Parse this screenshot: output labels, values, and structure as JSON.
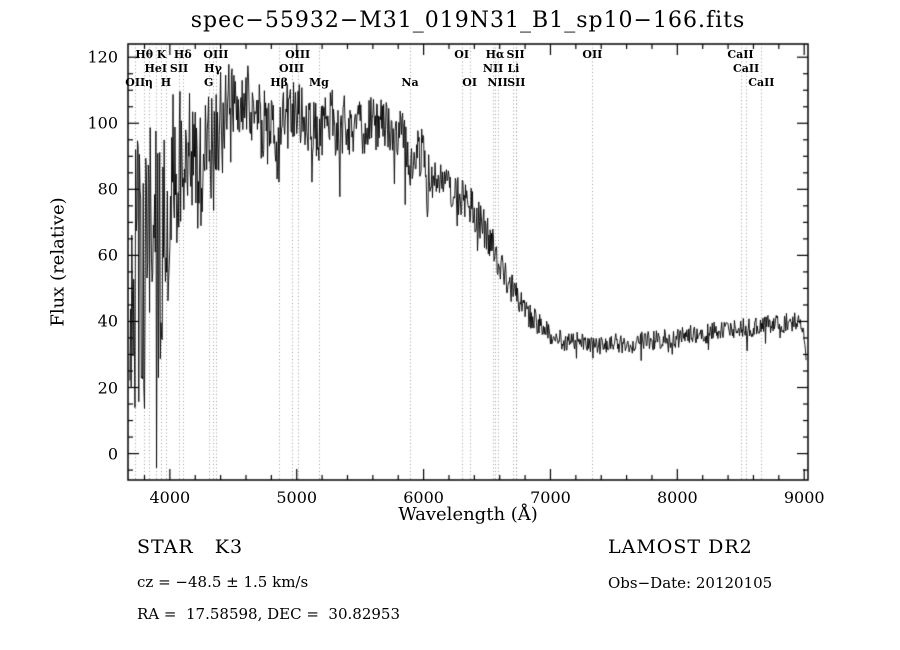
{
  "figure": {
    "title": "spec−55932−M31_019N31_B1_sp10−166.fits",
    "xlabel": "Wavelength (Å)",
    "ylabel": "Flux (relative)"
  },
  "annotations": {
    "class_label": "STAR   K3",
    "survey": "LAMOST DR2",
    "cz": "cz = −48.5 ± 1.5 km/s",
    "obs_date": "Obs−Date: 20120105",
    "ra_dec": "RA =  17.58598, DEC =  30.82953"
  },
  "chart_data": {
    "type": "line",
    "title": "spec−55932−M31_019N31_B1_sp10−166.fits",
    "xlabel": "Wavelength (Å)",
    "ylabel": "Flux (relative)",
    "xlim": [
      3670,
      9030
    ],
    "ylim": [
      -8,
      124
    ],
    "x_ticks": [
      4000,
      5000,
      6000,
      7000,
      8000,
      9000
    ],
    "x_minor_step": 200,
    "y_ticks": [
      0,
      20,
      40,
      60,
      80,
      100,
      120
    ],
    "y_minor_step": 5,
    "grid": true,
    "legend": "none",
    "line_color": "#000000",
    "grid_color": "#9e9e9e",
    "noise_seed": 55932,
    "spectrum_step": 5,
    "spectrum_range": [
      3685,
      9018
    ],
    "spectrum_envelope": [
      [
        3670,
        40,
        38
      ],
      [
        3700,
        48,
        40
      ],
      [
        3730,
        55,
        42
      ],
      [
        3760,
        60,
        40
      ],
      [
        3790,
        52,
        42
      ],
      [
        3820,
        55,
        40
      ],
      [
        3850,
        60,
        40
      ],
      [
        3880,
        62,
        38
      ],
      [
        3910,
        60,
        40
      ],
      [
        3940,
        65,
        38
      ],
      [
        3970,
        72,
        35
      ],
      [
        4000,
        82,
        28
      ],
      [
        4050,
        90,
        24
      ],
      [
        4100,
        92,
        22
      ],
      [
        4150,
        95,
        20
      ],
      [
        4200,
        88,
        20
      ],
      [
        4250,
        85,
        18
      ],
      [
        4300,
        92,
        18
      ],
      [
        4340,
        90,
        18
      ],
      [
        4400,
        102,
        14
      ],
      [
        4450,
        106,
        12
      ],
      [
        4500,
        108,
        12
      ],
      [
        4550,
        110,
        11
      ],
      [
        4600,
        108,
        11
      ],
      [
        4650,
        104,
        12
      ],
      [
        4700,
        102,
        12
      ],
      [
        4750,
        100,
        12
      ],
      [
        4800,
        98,
        12
      ],
      [
        4861,
        92,
        12
      ],
      [
        4900,
        100,
        11
      ],
      [
        4950,
        103,
        10
      ],
      [
        5000,
        104,
        10
      ],
      [
        5050,
        100,
        11
      ],
      [
        5100,
        99,
        11
      ],
      [
        5175,
        95,
        10
      ],
      [
        5250,
        101,
        10
      ],
      [
        5350,
        99,
        10
      ],
      [
        5450,
        100,
        9
      ],
      [
        5550,
        99,
        9
      ],
      [
        5650,
        100,
        9
      ],
      [
        5750,
        99,
        9
      ],
      [
        5800,
        98,
        9
      ],
      [
        5850,
        93,
        9
      ],
      [
        5893,
        86,
        8
      ],
      [
        5950,
        92,
        8
      ],
      [
        6000,
        90,
        8
      ],
      [
        6030,
        80,
        10
      ],
      [
        6060,
        86,
        7
      ],
      [
        6100,
        85,
        6
      ],
      [
        6150,
        83,
        6
      ],
      [
        6200,
        81,
        6
      ],
      [
        6250,
        79,
        6
      ],
      [
        6300,
        77,
        6
      ],
      [
        6350,
        76,
        6
      ],
      [
        6400,
        73,
        6
      ],
      [
        6450,
        70,
        6
      ],
      [
        6500,
        67,
        6
      ],
      [
        6563,
        60,
        6
      ],
      [
        6600,
        58,
        5
      ],
      [
        6650,
        54,
        5
      ],
      [
        6700,
        50,
        5
      ],
      [
        6750,
        47,
        4
      ],
      [
        6800,
        44,
        4
      ],
      [
        6870,
        40,
        4
      ],
      [
        6900,
        40,
        4
      ],
      [
        6950,
        38,
        3
      ],
      [
        7000,
        36,
        3
      ],
      [
        7100,
        34,
        3
      ],
      [
        7200,
        34,
        3
      ],
      [
        7300,
        33,
        3
      ],
      [
        7400,
        33,
        3
      ],
      [
        7500,
        34,
        3
      ],
      [
        7600,
        32,
        3
      ],
      [
        7700,
        34,
        3
      ],
      [
        7800,
        34,
        3
      ],
      [
        7900,
        35,
        3
      ],
      [
        8000,
        35,
        3
      ],
      [
        8100,
        36,
        3
      ],
      [
        8200,
        36,
        3
      ],
      [
        8300,
        37,
        3
      ],
      [
        8400,
        37,
        3
      ],
      [
        8500,
        38,
        3
      ],
      [
        8600,
        38,
        3
      ],
      [
        8700,
        39,
        3
      ],
      [
        8800,
        39,
        3
      ],
      [
        8900,
        40,
        3
      ],
      [
        8970,
        40,
        2
      ],
      [
        9000,
        36,
        2
      ],
      [
        9015,
        28,
        1
      ]
    ],
    "spectral_lines": [
      {
        "label": "Hθ",
        "wavelength": 3798,
        "row": 1
      },
      {
        "label": "K",
        "wavelength": 3934,
        "row": 1
      },
      {
        "label": "Hδ",
        "wavelength": 4102,
        "row": 1
      },
      {
        "label": "OIII",
        "wavelength": 4363,
        "row": 1
      },
      {
        "label": "OIII",
        "wavelength": 5007,
        "row": 1
      },
      {
        "label": "OI",
        "wavelength": 6300,
        "row": 1
      },
      {
        "label": "Hα",
        "wavelength": 6563,
        "row": 1
      },
      {
        "label": "SII",
        "wavelength": 6725,
        "row": 1
      },
      {
        "label": "OII",
        "wavelength": 7330,
        "row": 1
      },
      {
        "label": "CaII",
        "wavelength": 8498,
        "row": 1
      },
      {
        "label": "HeI",
        "wavelength": 3889,
        "row": 2
      },
      {
        "label": "SII",
        "wavelength": 4072,
        "row": 2
      },
      {
        "label": "Hγ",
        "wavelength": 4340,
        "row": 2
      },
      {
        "label": "OIII",
        "wavelength": 4959,
        "row": 2
      },
      {
        "label": "NII",
        "wavelength": 6548,
        "row": 2
      },
      {
        "label": "Li",
        "wavelength": 6708,
        "row": 2
      },
      {
        "label": "CaII",
        "wavelength": 8542,
        "row": 2
      },
      {
        "label": "OII",
        "wavelength": 3727,
        "row": 3
      },
      {
        "label": "η",
        "wavelength": 3835,
        "row": 3
      },
      {
        "label": "H",
        "wavelength": 3969,
        "row": 3
      },
      {
        "label": "G",
        "wavelength": 4306,
        "row": 3
      },
      {
        "label": "Hβ",
        "wavelength": 4861,
        "row": 3
      },
      {
        "label": "Mg",
        "wavelength": 5175,
        "row": 3
      },
      {
        "label": "Na",
        "wavelength": 5893,
        "row": 3
      },
      {
        "label": "OI",
        "wavelength": 6363,
        "row": 3
      },
      {
        "label": "NII",
        "wavelength": 6583,
        "row": 3
      },
      {
        "label": "SII",
        "wavelength": 6731,
        "row": 3
      },
      {
        "label": "CaII",
        "wavelength": 8662,
        "row": 3
      }
    ]
  }
}
